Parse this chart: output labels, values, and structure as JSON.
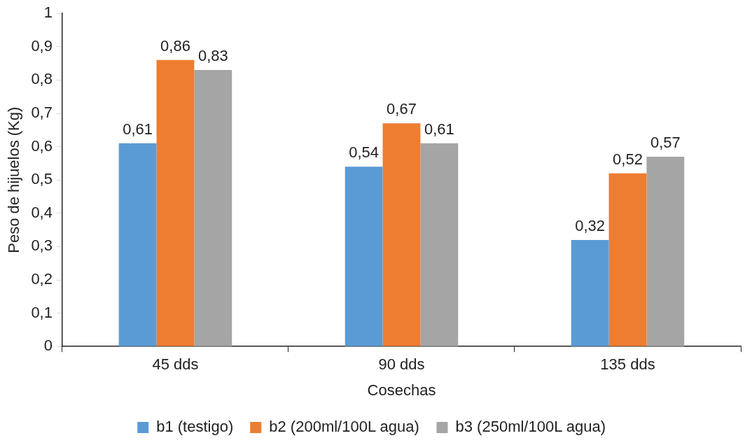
{
  "chart_data": {
    "type": "bar",
    "xlabel": "Cosechas",
    "ylabel": "Peso de hijuelos (Kg)",
    "categories": [
      "45 dds",
      "90 dds",
      "135 dds"
    ],
    "series": [
      {
        "name": "b1 (testigo)",
        "color": "#5b9bd5",
        "values": [
          0.61,
          0.54,
          0.32
        ],
        "value_labels": [
          "0,61",
          "0,54",
          "0,32"
        ]
      },
      {
        "name": "b2 (200ml/100L agua)",
        "color": "#ed7d31",
        "values": [
          0.86,
          0.67,
          0.52
        ],
        "value_labels": [
          "0,86",
          "0,67",
          "0,52"
        ]
      },
      {
        "name": "b3 (250ml/100L agua)",
        "color": "#a5a5a5",
        "values": [
          0.83,
          0.61,
          0.57
        ],
        "value_labels": [
          "0,83",
          "0,61",
          "0,57"
        ]
      }
    ],
    "ylim": [
      0,
      1
    ],
    "yticks": [
      0,
      {
        "value": 0.1,
        "label": "0,1"
      },
      {
        "value": 0.2,
        "label": "0,2"
      },
      {
        "value": 0.3,
        "label": "0,3"
      },
      {
        "value": 0.4,
        "label": "0,4"
      },
      {
        "value": 0.5,
        "label": "0,5"
      },
      {
        "value": 0.6,
        "label": "0,6"
      },
      {
        "value": 0.7,
        "label": "0,7"
      },
      {
        "value": 0.8,
        "label": "0,8"
      },
      {
        "value": 0.9,
        "label": "0,9"
      },
      1
    ],
    "legend": "bottom"
  }
}
